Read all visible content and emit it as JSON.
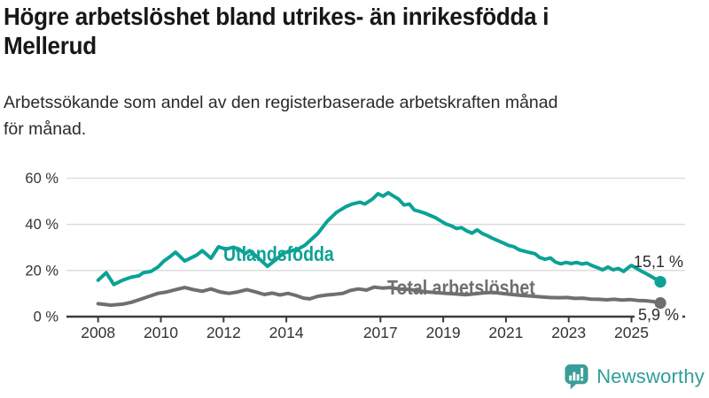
{
  "header": {
    "title_line1": "Högre arbetslöshet bland utrikes- än inrikesfödda i",
    "title_line2": "Mellerud",
    "subtitle_line1": "Arbetssökande som andel av den registerbaserade arbetskraften månad",
    "subtitle_line2": "för månad."
  },
  "chart_data": {
    "type": "line",
    "x_axis": {
      "ticks": [
        2008,
        2010,
        2012,
        2014,
        2017,
        2019,
        2021,
        2023,
        2025
      ],
      "tick_labels": [
        "2008",
        "2010",
        "2012",
        "2014",
        "2017",
        "2019",
        "2021",
        "2023",
        "2025"
      ],
      "range": [
        2007.0,
        2026.7
      ]
    },
    "y_axis": {
      "ticks": [
        0,
        20,
        40,
        60
      ],
      "tick_labels": [
        "0 %",
        "20 %",
        "40 %",
        "60 %"
      ],
      "range": [
        0,
        62
      ],
      "grid": true,
      "unit": "%"
    },
    "series": [
      {
        "name": "Utlandsfödda",
        "color": "#0ca296",
        "end_label": "15,1 %",
        "end_value": 15.1,
        "points": [
          [
            2008.0,
            15.8
          ],
          [
            2008.26,
            19.0
          ],
          [
            2008.5,
            13.9
          ],
          [
            2008.78,
            15.8
          ],
          [
            2009.06,
            17.1
          ],
          [
            2009.3,
            17.7
          ],
          [
            2009.44,
            19.0
          ],
          [
            2009.68,
            19.6
          ],
          [
            2009.91,
            21.5
          ],
          [
            2010.1,
            24.1
          ],
          [
            2010.29,
            26.0
          ],
          [
            2010.47,
            27.9
          ],
          [
            2010.76,
            24.1
          ],
          [
            2011.14,
            26.7
          ],
          [
            2011.32,
            28.6
          ],
          [
            2011.6,
            25.3
          ],
          [
            2011.84,
            30.3
          ],
          [
            2012.08,
            29.2
          ],
          [
            2012.31,
            30.1
          ],
          [
            2012.5,
            29.2
          ],
          [
            2012.69,
            27.3
          ],
          [
            2012.83,
            28.6
          ],
          [
            2013.06,
            26.0
          ],
          [
            2013.4,
            21.8
          ],
          [
            2013.65,
            24.5
          ],
          [
            2013.9,
            27.5
          ],
          [
            2014.15,
            28.5
          ],
          [
            2014.4,
            29.5
          ],
          [
            2014.6,
            31.0
          ],
          [
            2014.76,
            33.0
          ],
          [
            2015.0,
            36.0
          ],
          [
            2015.3,
            41.3
          ],
          [
            2015.6,
            45.2
          ],
          [
            2015.9,
            47.7
          ],
          [
            2016.1,
            48.8
          ],
          [
            2016.35,
            49.6
          ],
          [
            2016.5,
            48.8
          ],
          [
            2016.75,
            51.0
          ],
          [
            2016.92,
            53.3
          ],
          [
            2017.08,
            52.2
          ],
          [
            2017.25,
            53.7
          ],
          [
            2017.42,
            52.2
          ],
          [
            2017.58,
            50.9
          ],
          [
            2017.75,
            48.4
          ],
          [
            2017.92,
            48.8
          ],
          [
            2018.08,
            46.2
          ],
          [
            2018.25,
            45.6
          ],
          [
            2018.42,
            44.8
          ],
          [
            2018.58,
            43.9
          ],
          [
            2018.75,
            42.9
          ],
          [
            2018.92,
            41.5
          ],
          [
            2019.08,
            40.2
          ],
          [
            2019.25,
            39.4
          ],
          [
            2019.42,
            38.2
          ],
          [
            2019.58,
            38.6
          ],
          [
            2019.75,
            37.2
          ],
          [
            2019.92,
            36.2
          ],
          [
            2020.08,
            37.6
          ],
          [
            2020.25,
            36.0
          ],
          [
            2020.42,
            35.0
          ],
          [
            2020.58,
            33.9
          ],
          [
            2020.75,
            32.9
          ],
          [
            2020.92,
            31.9
          ],
          [
            2021.08,
            30.9
          ],
          [
            2021.25,
            30.3
          ],
          [
            2021.42,
            29.0
          ],
          [
            2021.58,
            28.4
          ],
          [
            2021.75,
            27.8
          ],
          [
            2021.92,
            27.3
          ],
          [
            2022.08,
            25.6
          ],
          [
            2022.25,
            24.9
          ],
          [
            2022.42,
            25.4
          ],
          [
            2022.58,
            23.6
          ],
          [
            2022.75,
            22.9
          ],
          [
            2022.92,
            23.5
          ],
          [
            2023.08,
            23.0
          ],
          [
            2023.25,
            23.5
          ],
          [
            2023.42,
            22.8
          ],
          [
            2023.58,
            23.2
          ],
          [
            2023.75,
            22.1
          ],
          [
            2023.92,
            21.2
          ],
          [
            2024.08,
            20.3
          ],
          [
            2024.25,
            21.5
          ],
          [
            2024.42,
            20.3
          ],
          [
            2024.58,
            20.9
          ],
          [
            2024.75,
            19.6
          ],
          [
            2024.92,
            21.5
          ],
          [
            2025.0,
            22.2
          ],
          [
            2025.17,
            20.9
          ],
          [
            2025.33,
            19.6
          ],
          [
            2025.5,
            18.4
          ],
          [
            2025.67,
            17.1
          ],
          [
            2025.83,
            15.8
          ],
          [
            2025.92,
            15.1
          ]
        ]
      },
      {
        "name": "Total arbetslöshet",
        "color": "#6f6f73",
        "end_label": "5,9 %",
        "end_value": 5.9,
        "points": [
          [
            2008.0,
            5.6
          ],
          [
            2008.4,
            5.0
          ],
          [
            2008.78,
            5.4
          ],
          [
            2009.06,
            6.2
          ],
          [
            2009.35,
            7.5
          ],
          [
            2009.63,
            8.8
          ],
          [
            2009.91,
            10.1
          ],
          [
            2010.19,
            10.7
          ],
          [
            2010.47,
            11.7
          ],
          [
            2010.76,
            12.6
          ],
          [
            2011.04,
            11.7
          ],
          [
            2011.32,
            11.0
          ],
          [
            2011.6,
            12.0
          ],
          [
            2011.89,
            10.7
          ],
          [
            2012.17,
            10.1
          ],
          [
            2012.45,
            10.7
          ],
          [
            2012.74,
            11.7
          ],
          [
            2013.02,
            10.7
          ],
          [
            2013.3,
            9.6
          ],
          [
            2013.55,
            10.2
          ],
          [
            2013.8,
            9.4
          ],
          [
            2014.05,
            10.1
          ],
          [
            2014.3,
            9.2
          ],
          [
            2014.55,
            8.0
          ],
          [
            2014.75,
            7.7
          ],
          [
            2015.0,
            8.8
          ],
          [
            2015.3,
            9.4
          ],
          [
            2015.55,
            9.7
          ],
          [
            2015.8,
            10.1
          ],
          [
            2016.05,
            11.4
          ],
          [
            2016.3,
            12.0
          ],
          [
            2016.55,
            11.5
          ],
          [
            2016.8,
            12.8
          ],
          [
            2017.05,
            12.4
          ],
          [
            2017.3,
            12.6
          ],
          [
            2017.6,
            12.0
          ],
          [
            2017.9,
            11.8
          ],
          [
            2018.2,
            11.2
          ],
          [
            2018.5,
            10.7
          ],
          [
            2018.8,
            10.4
          ],
          [
            2019.1,
            10.1
          ],
          [
            2019.4,
            9.8
          ],
          [
            2019.7,
            9.5
          ],
          [
            2020.0,
            9.9
          ],
          [
            2020.3,
            10.3
          ],
          [
            2020.6,
            10.5
          ],
          [
            2020.9,
            10.0
          ],
          [
            2021.2,
            9.6
          ],
          [
            2021.5,
            9.2
          ],
          [
            2021.8,
            8.9
          ],
          [
            2022.1,
            8.6
          ],
          [
            2022.4,
            8.3
          ],
          [
            2022.7,
            8.2
          ],
          [
            2022.95,
            8.3
          ],
          [
            2023.2,
            7.9
          ],
          [
            2023.45,
            8.0
          ],
          [
            2023.7,
            7.6
          ],
          [
            2023.95,
            7.5
          ],
          [
            2024.2,
            7.3
          ],
          [
            2024.45,
            7.5
          ],
          [
            2024.7,
            7.2
          ],
          [
            2024.95,
            7.4
          ],
          [
            2025.2,
            7.0
          ],
          [
            2025.45,
            6.9
          ],
          [
            2025.7,
            6.5
          ],
          [
            2025.92,
            5.9
          ]
        ]
      }
    ]
  },
  "branding": {
    "logo_text": "Newsworthy",
    "logo_icon": "newsworthy-speech-bubble-bar-chart-icon",
    "color": "#399e98"
  }
}
